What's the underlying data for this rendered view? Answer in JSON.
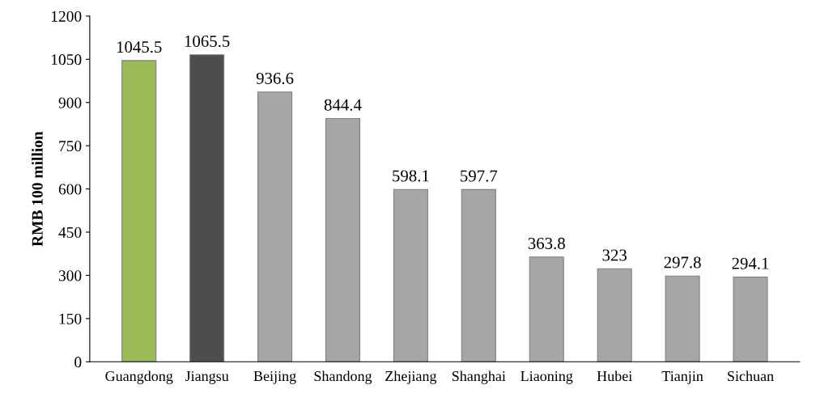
{
  "chart_data": {
    "type": "bar",
    "ylabel": "RMB 100 million",
    "categories": [
      "Guangdong",
      "Jiangsu",
      "Beijing",
      "Shandong",
      "Zhejiang",
      "Shanghai",
      "Liaoning",
      "Hubei",
      "Tianjin",
      "Sichuan"
    ],
    "values": [
      1045.5,
      1065.5,
      936.6,
      844.4,
      598.1,
      597.7,
      363.8,
      323,
      297.8,
      294.1
    ],
    "colors": [
      "#9bbb59",
      "#4d4d4d",
      "#a6a6a6",
      "#a6a6a6",
      "#a6a6a6",
      "#a6a6a6",
      "#a6a6a6",
      "#a6a6a6",
      "#a6a6a6",
      "#a6a6a6"
    ],
    "ylim": [
      0,
      1200
    ],
    "yticks": [
      0,
      150,
      300,
      450,
      600,
      750,
      900,
      1050,
      1200
    ],
    "data_labels": true,
    "grid": false
  }
}
